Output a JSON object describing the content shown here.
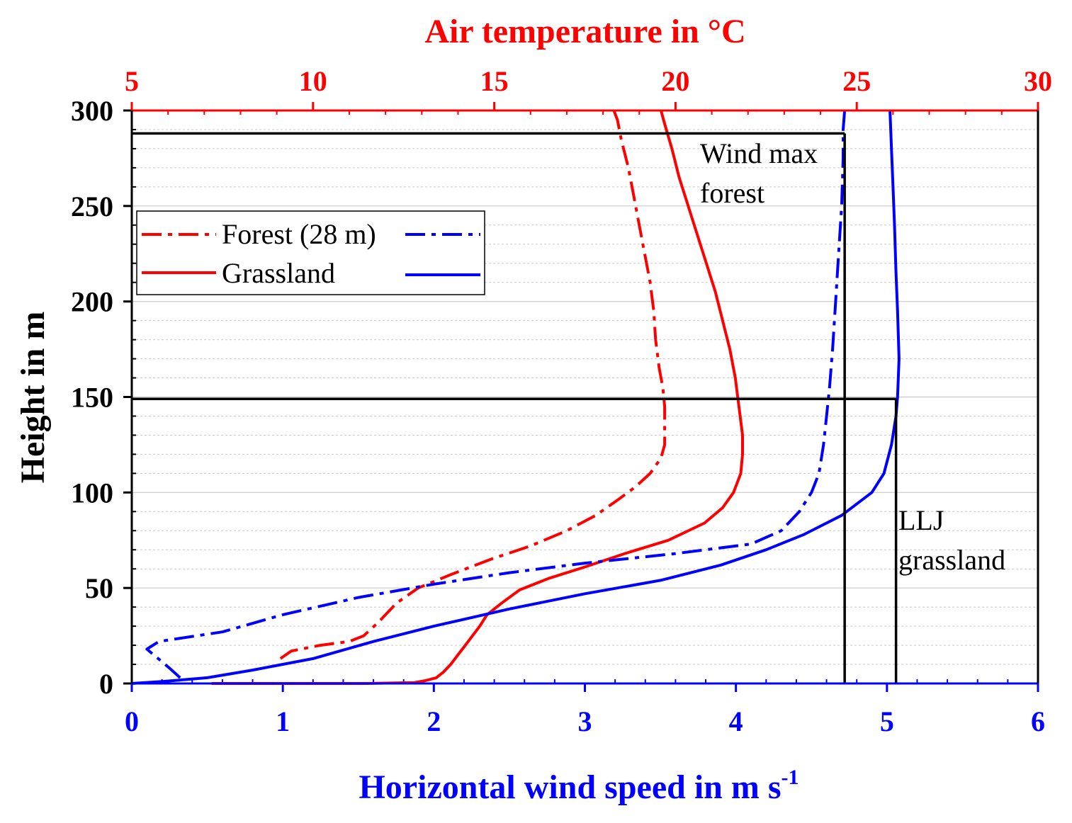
{
  "chart_data": {
    "type": "line",
    "title": "",
    "colors": {
      "temperature_axis": "#ff0000",
      "wind_axis": "#0000ff",
      "left_axis": "#000000",
      "gridline": "#c8c8c8",
      "reference_line": "#000000"
    },
    "axes": {
      "y": {
        "label": "Height in m",
        "range": [
          0,
          300
        ],
        "ticks": [
          0,
          50,
          100,
          150,
          200,
          250,
          300
        ],
        "tick_labels": [
          "0",
          "50",
          "100",
          "150",
          "200",
          "250",
          "300"
        ],
        "minor_step": 10
      },
      "x_bottom": {
        "label_main": "Horizontal wind speed in m s",
        "label_sup": "-1",
        "range": [
          0,
          6
        ],
        "ticks": [
          0,
          1,
          2,
          3,
          4,
          5,
          6
        ],
        "tick_labels": [
          "0",
          "1",
          "2",
          "3",
          "4",
          "5",
          "6"
        ],
        "minor_step": 0.2
      },
      "x_top": {
        "label": "Air temperature in °C",
        "range": [
          5,
          30
        ],
        "ticks": [
          5,
          10,
          15,
          20,
          25,
          30
        ],
        "tick_labels": [
          "5",
          "10",
          "15",
          "20",
          "25",
          "30"
        ],
        "minor_step": 1
      }
    },
    "legend": {
      "placement": "upper-left",
      "entries": [
        {
          "label": "Forest (28 m)",
          "temp_style": "dashdot",
          "wind_style": "dashdot"
        },
        {
          "label": "Grassland",
          "temp_style": "solid",
          "wind_style": "solid"
        }
      ]
    },
    "series": [
      {
        "name": "Forest (28 m) air temperature",
        "variable": "temperature",
        "axis": "x_top",
        "style": "dashdot",
        "color": "#ff0000",
        "points": [
          [
            9.1,
            13
          ],
          [
            9.4,
            17
          ],
          [
            10.2,
            20
          ],
          [
            11.0,
            22
          ],
          [
            11.4,
            25
          ],
          [
            11.8,
            32
          ],
          [
            12.3,
            42
          ],
          [
            12.9,
            50
          ],
          [
            13.8,
            57
          ],
          [
            14.9,
            65
          ],
          [
            16.0,
            72
          ],
          [
            17.0,
            80
          ],
          [
            17.8,
            88
          ],
          [
            18.4,
            96
          ],
          [
            18.9,
            103
          ],
          [
            19.3,
            110
          ],
          [
            19.6,
            118
          ],
          [
            19.7,
            125
          ],
          [
            19.7,
            135
          ],
          [
            19.7,
            145
          ],
          [
            19.65,
            155
          ],
          [
            19.55,
            165
          ],
          [
            19.45,
            180
          ],
          [
            19.4,
            195
          ],
          [
            19.3,
            210
          ],
          [
            19.15,
            225
          ],
          [
            19.0,
            240
          ],
          [
            18.85,
            255
          ],
          [
            18.7,
            270
          ],
          [
            18.5,
            285
          ],
          [
            18.4,
            295
          ],
          [
            18.3,
            300
          ]
        ]
      },
      {
        "name": "Grassland air temperature",
        "variable": "temperature",
        "axis": "x_top",
        "style": "solid",
        "color": "#ff0000",
        "points": [
          [
            7.2,
            0
          ],
          [
            8.5,
            0
          ],
          [
            10.0,
            0
          ],
          [
            11.5,
            0
          ],
          [
            12.8,
            0.5
          ],
          [
            13.1,
            1.5
          ],
          [
            13.4,
            3
          ],
          [
            13.6,
            6
          ],
          [
            13.8,
            10
          ],
          [
            14.0,
            15
          ],
          [
            14.2,
            20
          ],
          [
            14.4,
            25
          ],
          [
            14.6,
            30
          ],
          [
            14.8,
            36
          ],
          [
            15.2,
            42
          ],
          [
            15.7,
            49
          ],
          [
            16.5,
            55
          ],
          [
            17.5,
            61
          ],
          [
            18.6,
            68
          ],
          [
            19.8,
            75
          ],
          [
            20.8,
            84
          ],
          [
            21.3,
            92
          ],
          [
            21.6,
            100
          ],
          [
            21.8,
            110
          ],
          [
            21.85,
            120
          ],
          [
            21.85,
            130
          ],
          [
            21.75,
            145
          ],
          [
            21.65,
            160
          ],
          [
            21.5,
            175
          ],
          [
            21.3,
            190
          ],
          [
            21.1,
            205
          ],
          [
            20.85,
            220
          ],
          [
            20.6,
            235
          ],
          [
            20.35,
            250
          ],
          [
            20.1,
            265
          ],
          [
            19.9,
            280
          ],
          [
            19.7,
            293
          ],
          [
            19.6,
            300
          ]
        ]
      },
      {
        "name": "Forest (28 m) wind speed",
        "variable": "wind",
        "axis": "x_bottom",
        "style": "dashdot",
        "color": "#0000ff",
        "points": [
          [
            0.32,
            3
          ],
          [
            0.25,
            8
          ],
          [
            0.16,
            14
          ],
          [
            0.1,
            18
          ],
          [
            0.18,
            22
          ],
          [
            0.6,
            27
          ],
          [
            1.0,
            36
          ],
          [
            1.5,
            45
          ],
          [
            2.0,
            52
          ],
          [
            2.5,
            58
          ],
          [
            3.0,
            63
          ],
          [
            3.6,
            68
          ],
          [
            4.1,
            73
          ],
          [
            4.3,
            80
          ],
          [
            4.42,
            90
          ],
          [
            4.5,
            100
          ],
          [
            4.55,
            110
          ],
          [
            4.58,
            125
          ],
          [
            4.6,
            140
          ],
          [
            4.62,
            155
          ],
          [
            4.64,
            175
          ],
          [
            4.66,
            200
          ],
          [
            4.68,
            225
          ],
          [
            4.7,
            250
          ],
          [
            4.71,
            275
          ],
          [
            4.71,
            290
          ],
          [
            4.72,
            300
          ]
        ]
      },
      {
        "name": "Grassland wind speed",
        "variable": "wind",
        "axis": "x_bottom",
        "style": "solid",
        "color": "#0000ff",
        "points": [
          [
            0.0,
            0
          ],
          [
            0.2,
            1
          ],
          [
            0.5,
            3
          ],
          [
            0.8,
            7
          ],
          [
            1.2,
            13
          ],
          [
            1.6,
            22
          ],
          [
            2.0,
            30
          ],
          [
            2.5,
            39
          ],
          [
            3.0,
            47
          ],
          [
            3.5,
            54
          ],
          [
            3.9,
            62
          ],
          [
            4.2,
            70
          ],
          [
            4.45,
            78
          ],
          [
            4.7,
            88
          ],
          [
            4.9,
            100
          ],
          [
            4.98,
            110
          ],
          [
            5.03,
            125
          ],
          [
            5.06,
            140
          ],
          [
            5.07,
            150
          ],
          [
            5.08,
            170
          ],
          [
            5.07,
            195
          ],
          [
            5.06,
            215
          ],
          [
            5.05,
            240
          ],
          [
            5.04,
            260
          ],
          [
            5.03,
            280
          ],
          [
            5.02,
            300
          ]
        ]
      }
    ],
    "reference_lines": [
      {
        "name": "wind max forest",
        "horizontal_height": 288,
        "vertical_wind_speed": 4.72
      },
      {
        "name": "LLJ grassland",
        "horizontal_height": 149,
        "vertical_wind_speed": 5.06
      }
    ],
    "annotations": [
      {
        "id": "wind-max-forest",
        "lines": [
          "Wind max",
          "forest"
        ]
      },
      {
        "id": "llj-grassland",
        "lines": [
          "LLJ",
          "grassland"
        ]
      }
    ]
  }
}
